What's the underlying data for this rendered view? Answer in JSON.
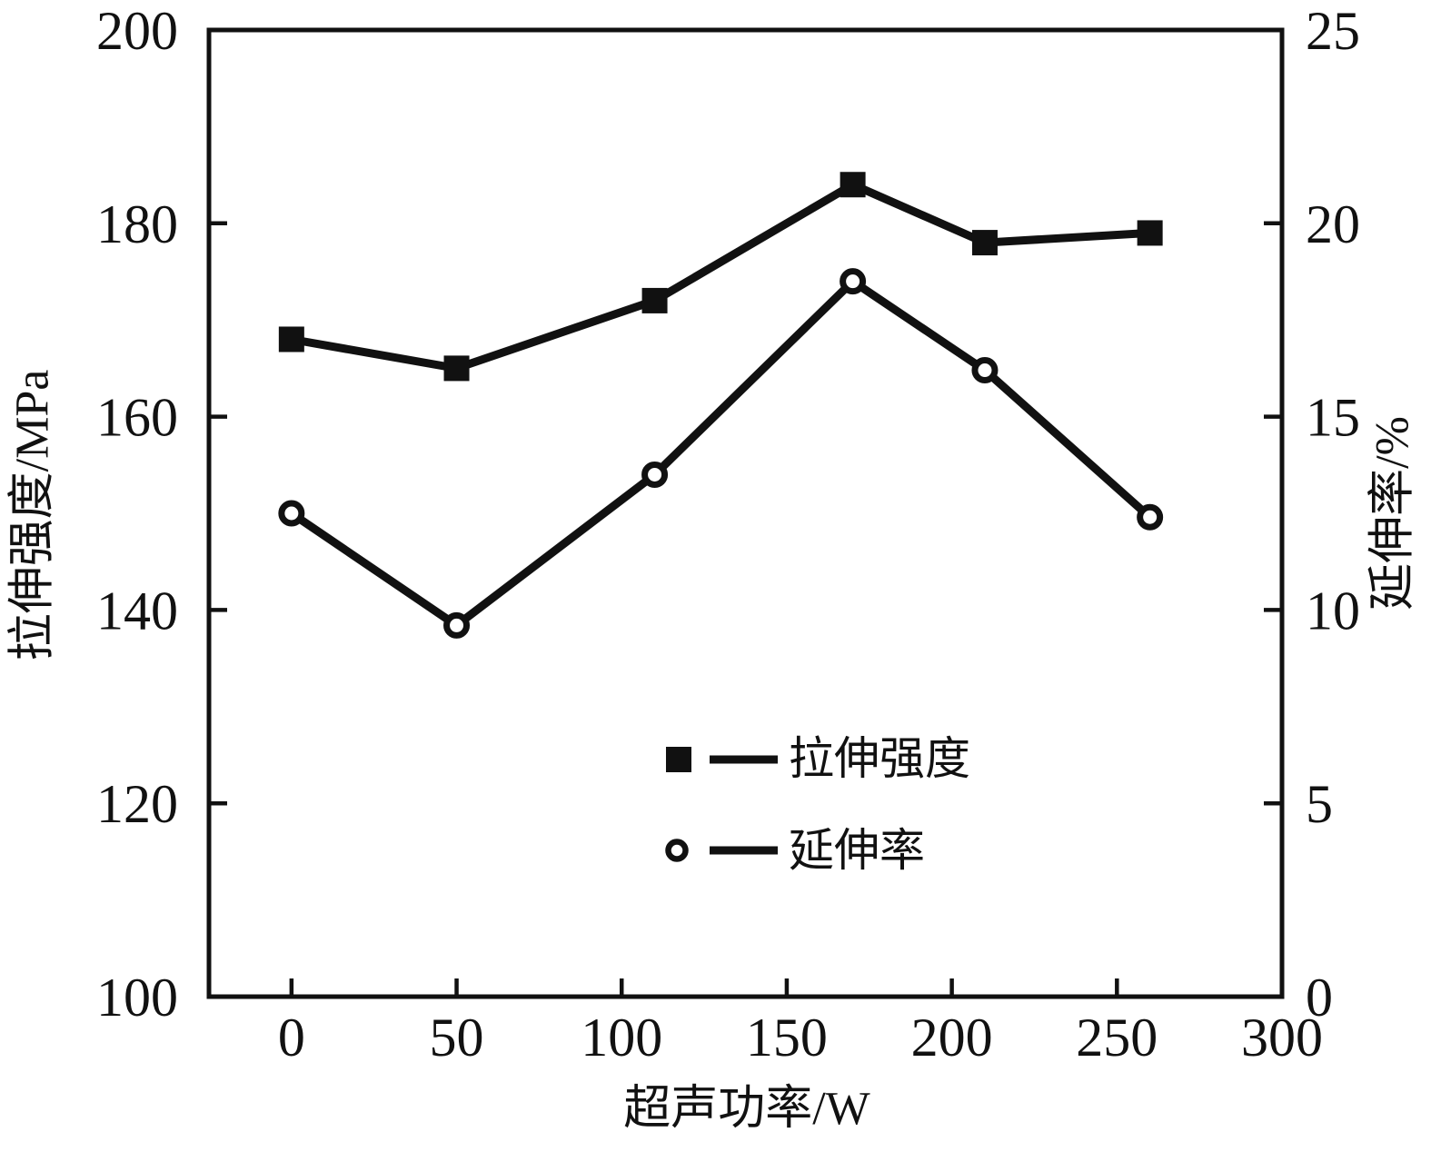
{
  "figure": {
    "background": "#ffffff",
    "ink_color": "#111111"
  },
  "chart_data": {
    "type": "line",
    "title": "",
    "xlabel": "超声功率/W",
    "ylabel_left": "拉伸强度/MPa",
    "ylabel_right": "延伸率/%",
    "grid": false,
    "x": [
      0,
      50,
      110,
      170,
      210,
      260
    ],
    "series": [
      {
        "name": "拉伸强度",
        "axis": "left",
        "marker": "filled-square",
        "values": [
          168,
          165,
          172,
          184,
          178,
          179
        ]
      },
      {
        "name": "延伸率",
        "axis": "right",
        "marker": "open-circle",
        "values": [
          12.5,
          9.6,
          13.5,
          18.5,
          16.2,
          12.4
        ]
      }
    ],
    "x_axis": {
      "range": [
        -25,
        300
      ],
      "ticks": [
        0,
        50,
        100,
        150,
        200,
        250,
        300
      ],
      "tick_labels": [
        "0",
        "50",
        "100",
        "150",
        "200",
        "250",
        "300"
      ]
    },
    "y_axis_left": {
      "range": [
        100,
        200
      ],
      "ticks": [
        100,
        120,
        140,
        160,
        180,
        200
      ],
      "tick_labels": [
        "100",
        "120",
        "140",
        "160",
        "180",
        "200"
      ]
    },
    "y_axis_right": {
      "range": [
        0,
        25
      ],
      "ticks": [
        0,
        5,
        10,
        15,
        20,
        25
      ],
      "tick_labels": [
        "0",
        "5",
        "10",
        "15",
        "20",
        "25"
      ]
    },
    "legend": {
      "position": "inside-bottom-center",
      "entries": [
        {
          "label": "拉伸强度",
          "marker": "filled-square"
        },
        {
          "label": "延伸率",
          "marker": "open-circle"
        }
      ]
    }
  }
}
